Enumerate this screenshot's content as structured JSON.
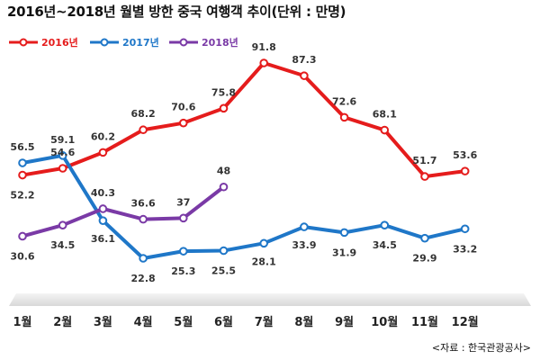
{
  "title": "2016년~2018년 월별 방한 중국 여행객 추이(단위 : 만명)",
  "source": "<자료 : 한국관광공사>",
  "chart_data": {
    "type": "line",
    "categories": [
      "1월",
      "2월",
      "3월",
      "4월",
      "5월",
      "6월",
      "7월",
      "8월",
      "9월",
      "10월",
      "11월",
      "12월"
    ],
    "ylim": [
      15,
      100
    ],
    "grid": false,
    "legend_position": "top-left",
    "series": [
      {
        "name": "2016년",
        "color": "#e51c1c",
        "values": [
          52.2,
          54.6,
          60.2,
          68.2,
          70.6,
          75.8,
          91.8,
          87.3,
          72.6,
          68.1,
          51.7,
          53.6
        ]
      },
      {
        "name": "2017년",
        "color": "#1f77c8",
        "values": [
          56.5,
          59.1,
          36.1,
          22.8,
          25.3,
          25.5,
          28.1,
          33.9,
          31.9,
          34.5,
          29.9,
          33.2
        ]
      },
      {
        "name": "2018년",
        "color": "#7a3aa6",
        "values": [
          30.6,
          34.5,
          40.3,
          36.6,
          37,
          48,
          null,
          null,
          null,
          null,
          null,
          null
        ]
      }
    ],
    "data_labels": [
      [
        "52.2",
        "54.6",
        "60.2",
        "68.2",
        "70.6",
        "75.8",
        "91.8",
        "87.3",
        "72.6",
        "68.1",
        "51.7",
        "53.6"
      ],
      [
        "56.5",
        "59.1",
        "36.1",
        "22.8",
        "25.3",
        "25.5",
        "28.1",
        "33.9",
        "31.9",
        "34.5",
        "29.9",
        "33.2"
      ],
      [
        "30.6",
        "34.5",
        "40.3",
        "36.6",
        "37",
        "48"
      ]
    ]
  }
}
